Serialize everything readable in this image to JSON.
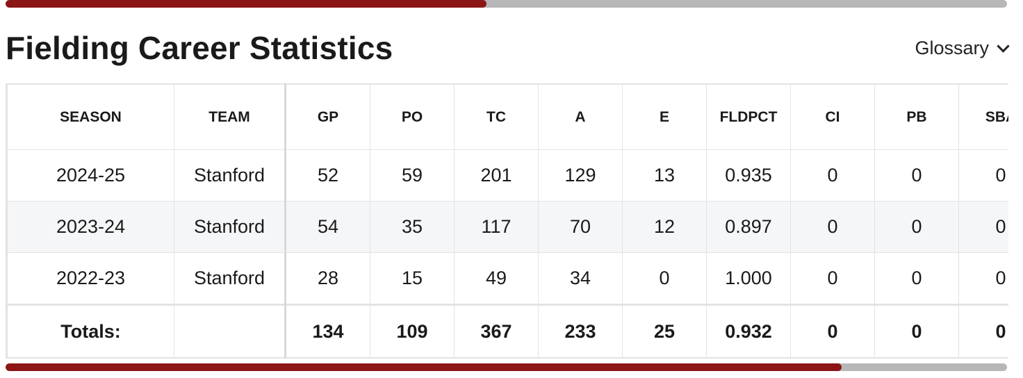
{
  "scroll_top": {
    "fraction": 0.48
  },
  "scroll_bottom": {
    "fraction": 0.835
  },
  "title": "Fielding Career Statistics",
  "glossary": {
    "label": "Glossary",
    "icon": "chevron-down-icon"
  },
  "columns": [
    "SEASON",
    "TEAM",
    "GP",
    "PO",
    "TC",
    "A",
    "E",
    "FLDPCT",
    "CI",
    "PB",
    "SBA"
  ],
  "rows": [
    [
      "2024-25",
      "Stanford",
      "52",
      "59",
      "201",
      "129",
      "13",
      "0.935",
      "0",
      "0",
      "0"
    ],
    [
      "2023-24",
      "Stanford",
      "54",
      "35",
      "117",
      "70",
      "12",
      "0.897",
      "0",
      "0",
      "0"
    ],
    [
      "2022-23",
      "Stanford",
      "28",
      "15",
      "49",
      "34",
      "0",
      "1.000",
      "0",
      "0",
      "0"
    ]
  ],
  "totals": [
    "Totals:",
    "",
    "134",
    "109",
    "367",
    "233",
    "25",
    "0.932",
    "0",
    "0",
    "0"
  ],
  "colors": {
    "accent": "#8c1515",
    "track": "#b7b7b7"
  }
}
